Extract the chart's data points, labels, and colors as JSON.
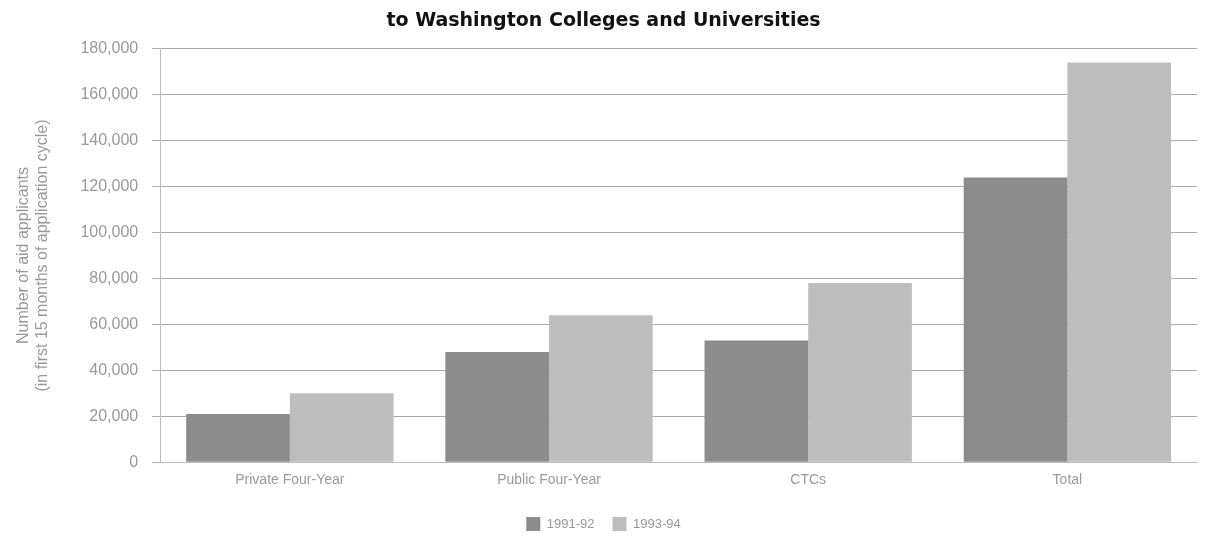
{
  "chart_data": {
    "type": "bar",
    "title": "to Washington Colleges and Universities",
    "ylabel": "Number of aid applicants\n(in first 15 months of application cycle)",
    "categories": [
      "Private Four-Year",
      "Public Four-Year",
      "CTCs",
      "Total"
    ],
    "series": [
      {
        "name": "1991-92",
        "color": "#8c8c8c",
        "values": [
          21000,
          48000,
          53000,
          124000
        ]
      },
      {
        "name": "1993-94",
        "color": "#bdbdbd",
        "values": [
          30000,
          64000,
          78000,
          174000
        ]
      }
    ],
    "ylim": [
      0,
      180000
    ],
    "yticks": [
      0,
      {
        "value": 20000,
        "label": "20,000"
      },
      {
        "value": 40000,
        "label": "40,000"
      },
      {
        "value": 60000,
        "label": "60,000"
      },
      {
        "value": 80000,
        "label": "80,000"
      },
      {
        "value": 100000,
        "label": "100,000"
      },
      {
        "value": 120000,
        "label": "120,000"
      },
      {
        "value": 140000,
        "label": "140,000"
      },
      {
        "value": 160000,
        "label": "160,000"
      },
      {
        "value": 180000,
        "label": "180,000"
      }
    ],
    "grid": "y",
    "legend": "bottom"
  }
}
